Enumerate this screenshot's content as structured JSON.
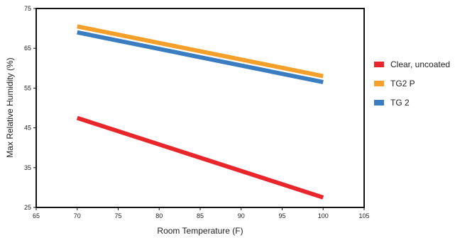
{
  "chart_data": {
    "type": "line",
    "xlabel": "Room Temperature (F)",
    "ylabel": "Max Relative Humidity (%)",
    "xlim": [
      65,
      105
    ],
    "ylim": [
      25,
      75
    ],
    "x_ticks": [
      "65",
      "70",
      "75",
      "80",
      "85",
      "90",
      "95",
      "100",
      "105"
    ],
    "y_ticks": [
      "25",
      "35",
      "45",
      "55",
      "65",
      "75"
    ],
    "grid": false,
    "legend_position": "right",
    "series": [
      {
        "name": "Clear, uncoated",
        "color": "#e8262b",
        "x": [
          70,
          100
        ],
        "y": [
          47.5,
          27.5
        ]
      },
      {
        "name": "TG2 P",
        "color": "#f5a02a",
        "x": [
          70,
          100
        ],
        "y": [
          70.5,
          58
        ]
      },
      {
        "name": "TG 2",
        "color": "#3a7dc1",
        "x": [
          70,
          100
        ],
        "y": [
          69,
          56.5
        ]
      }
    ]
  }
}
